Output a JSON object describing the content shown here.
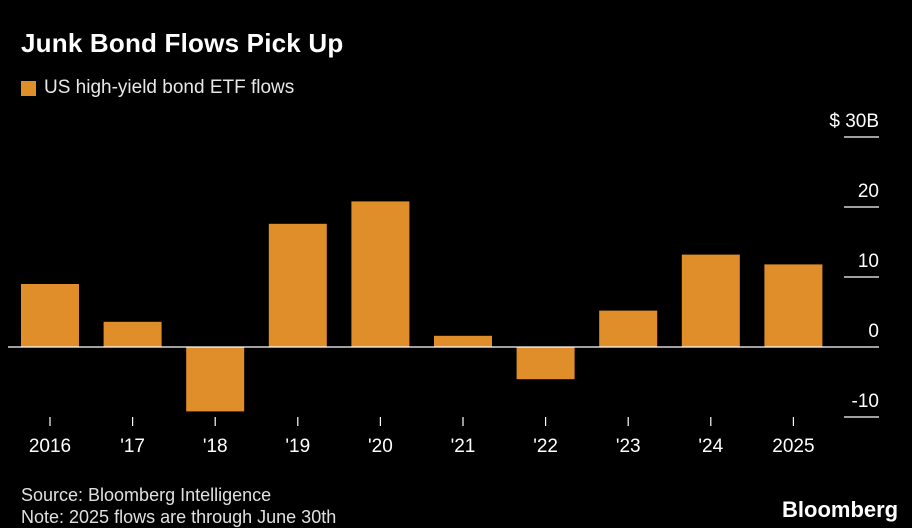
{
  "title": "Junk Bond Flows Pick Up",
  "source": "Source: Bloomberg Intelligence",
  "note": "Note: 2025 flows are through June 30th",
  "brand": "Bloomberg",
  "colors": {
    "bar": "#e08e2a",
    "background": "#000000",
    "text": "#ffffff",
    "axis": "#ffffff"
  },
  "chart_data": {
    "type": "bar",
    "title": "Junk Bond Flows Pick Up",
    "xlabel": "",
    "ylabel": "",
    "categories": [
      "2016",
      "'17",
      "'18",
      "'19",
      "'20",
      "'21",
      "'22",
      "'23",
      "'24",
      "2025"
    ],
    "series": [
      {
        "name": "US high-yield bond ETF flows",
        "values": [
          9.0,
          3.6,
          -9.2,
          17.6,
          20.8,
          1.6,
          -4.6,
          5.2,
          13.2,
          11.8
        ]
      }
    ],
    "ylim": [
      -10,
      30
    ],
    "yticks": [
      {
        "value": 30,
        "label": "$ 30B"
      },
      {
        "value": 20,
        "label": "20"
      },
      {
        "value": 10,
        "label": "10"
      },
      {
        "value": 0,
        "label": "0"
      },
      {
        "value": -10,
        "label": "-10"
      }
    ],
    "grid": false,
    "legend_position": "top-left",
    "y_axis_position": "right"
  }
}
